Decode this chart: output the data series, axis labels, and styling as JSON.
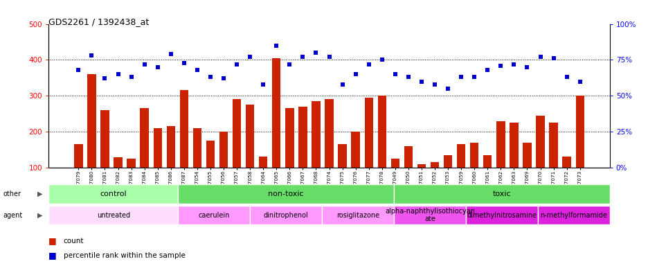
{
  "title": "GDS2261 / 1392438_at",
  "samples": [
    "GSM127079",
    "GSM127080",
    "GSM127081",
    "GSM127082",
    "GSM127083",
    "GSM127084",
    "GSM127085",
    "GSM127086",
    "GSM127087",
    "GSM127054",
    "GSM127055",
    "GSM127056",
    "GSM127057",
    "GSM127058",
    "GSM127064",
    "GSM127065",
    "GSM127066",
    "GSM127067",
    "GSM127068",
    "GSM127074",
    "GSM127075",
    "GSM127076",
    "GSM127077",
    "GSM127078",
    "GSM127049",
    "GSM127050",
    "GSM127051",
    "GSM127052",
    "GSM127053",
    "GSM127059",
    "GSM127060",
    "GSM127061",
    "GSM127062",
    "GSM127063",
    "GSM127069",
    "GSM127070",
    "GSM127071",
    "GSM127072",
    "GSM127073"
  ],
  "counts": [
    165,
    360,
    260,
    128,
    125,
    265,
    210,
    215,
    315,
    210,
    175,
    200,
    290,
    275,
    130,
    405,
    265,
    270,
    285,
    290,
    165,
    200,
    295,
    300,
    125,
    160,
    110,
    115,
    135,
    165,
    170,
    135,
    230,
    225,
    170,
    245,
    225,
    130,
    300
  ],
  "percentile": [
    68,
    78,
    62,
    65,
    63,
    72,
    70,
    79,
    73,
    68,
    63,
    62,
    72,
    77,
    58,
    85,
    72,
    77,
    80,
    77,
    58,
    65,
    72,
    75,
    65,
    63,
    60,
    58,
    55,
    63,
    63,
    68,
    71,
    72,
    70,
    77,
    76,
    63,
    60
  ],
  "bar_color": "#cc2200",
  "dot_color": "#0000cc",
  "ylim_left": [
    100,
    500
  ],
  "ylim_right": [
    0,
    100
  ],
  "yticks_left": [
    100,
    200,
    300,
    400,
    500
  ],
  "yticks_right": [
    0,
    25,
    50,
    75,
    100
  ],
  "grid_dotted_values": [
    200,
    300,
    400
  ],
  "other_groups": [
    {
      "label": "control",
      "start": 0,
      "end": 9,
      "color": "#aaffaa"
    },
    {
      "label": "non-toxic",
      "start": 9,
      "end": 24,
      "color": "#66dd66"
    },
    {
      "label": "toxic",
      "start": 24,
      "end": 39,
      "color": "#66dd66"
    }
  ],
  "agent_groups": [
    {
      "label": "untreated",
      "start": 0,
      "end": 9,
      "color": "#ffddff"
    },
    {
      "label": "caerulein",
      "start": 9,
      "end": 14,
      "color": "#ff99ff"
    },
    {
      "label": "dinitrophenol",
      "start": 14,
      "end": 19,
      "color": "#ff99ff"
    },
    {
      "label": "rosiglitazone",
      "start": 19,
      "end": 24,
      "color": "#ff99ff"
    },
    {
      "label": "alpha-naphthylisothiocyan\nate",
      "start": 24,
      "end": 29,
      "color": "#ee55ee"
    },
    {
      "label": "dimethylnitrosamine",
      "start": 29,
      "end": 34,
      "color": "#dd22dd"
    },
    {
      "label": "n-methylformamide",
      "start": 34,
      "end": 39,
      "color": "#dd22dd"
    }
  ]
}
